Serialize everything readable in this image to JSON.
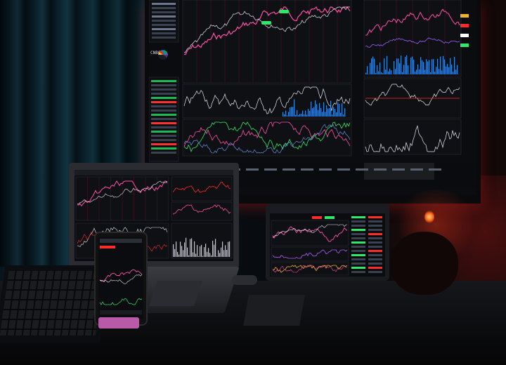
{
  "scene": {
    "description_tag": "trading-desk-photo",
    "monitor": {
      "badges": [
        "",
        ""
      ],
      "logo": "CNBC"
    },
    "colors": {
      "chart_pink": "#ff4fa8",
      "chart_white": "#e8e8f0",
      "chart_green": "#2ee86a",
      "chart_blue": "#3aa0ff",
      "chart_red": "#ff2a2a",
      "chart_gold": "#f0b030",
      "ambient_red": "#b01818",
      "curtain_teal": "#0b2531"
    }
  }
}
